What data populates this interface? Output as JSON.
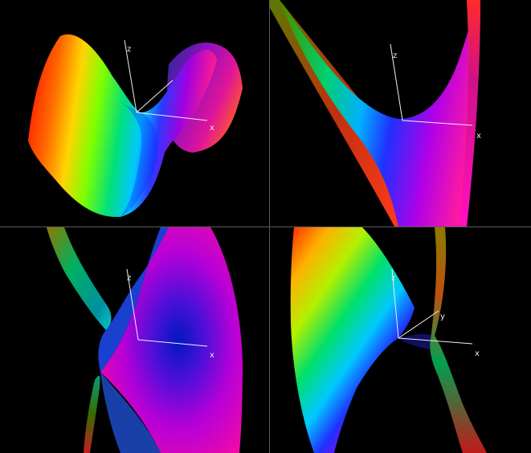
{
  "viewports": [
    {
      "name": "viewport-top-left",
      "axes": {
        "x": "x",
        "z": "z"
      }
    },
    {
      "name": "viewport-top-right",
      "axes": {
        "x": "x",
        "z": "z"
      }
    },
    {
      "name": "viewport-bottom-left",
      "axes": {
        "x": "x",
        "z": "z"
      }
    },
    {
      "name": "viewport-bottom-right",
      "axes": {
        "x": "x",
        "y": "y",
        "z": "z"
      }
    }
  ],
  "colors": {
    "background": "#000000",
    "axis": "#f0f0f0",
    "divider": "#5a5a5a"
  },
  "icons": [
    "hyperbolic-paraboloid-surface",
    "axis-triad"
  ]
}
